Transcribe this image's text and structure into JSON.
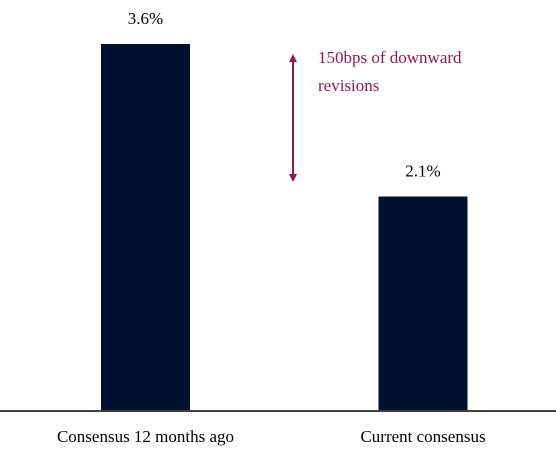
{
  "chart_data": {
    "type": "bar",
    "categories": [
      "Consensus 12 months ago",
      "Current consensus"
    ],
    "values": [
      3.6,
      2.1
    ],
    "value_labels": [
      "3.6%",
      "2.1%"
    ],
    "color": "#00102f",
    "annotation": [
      "150bps of downward",
      "revisions"
    ],
    "annotation_color": "#8b1a5a"
  }
}
